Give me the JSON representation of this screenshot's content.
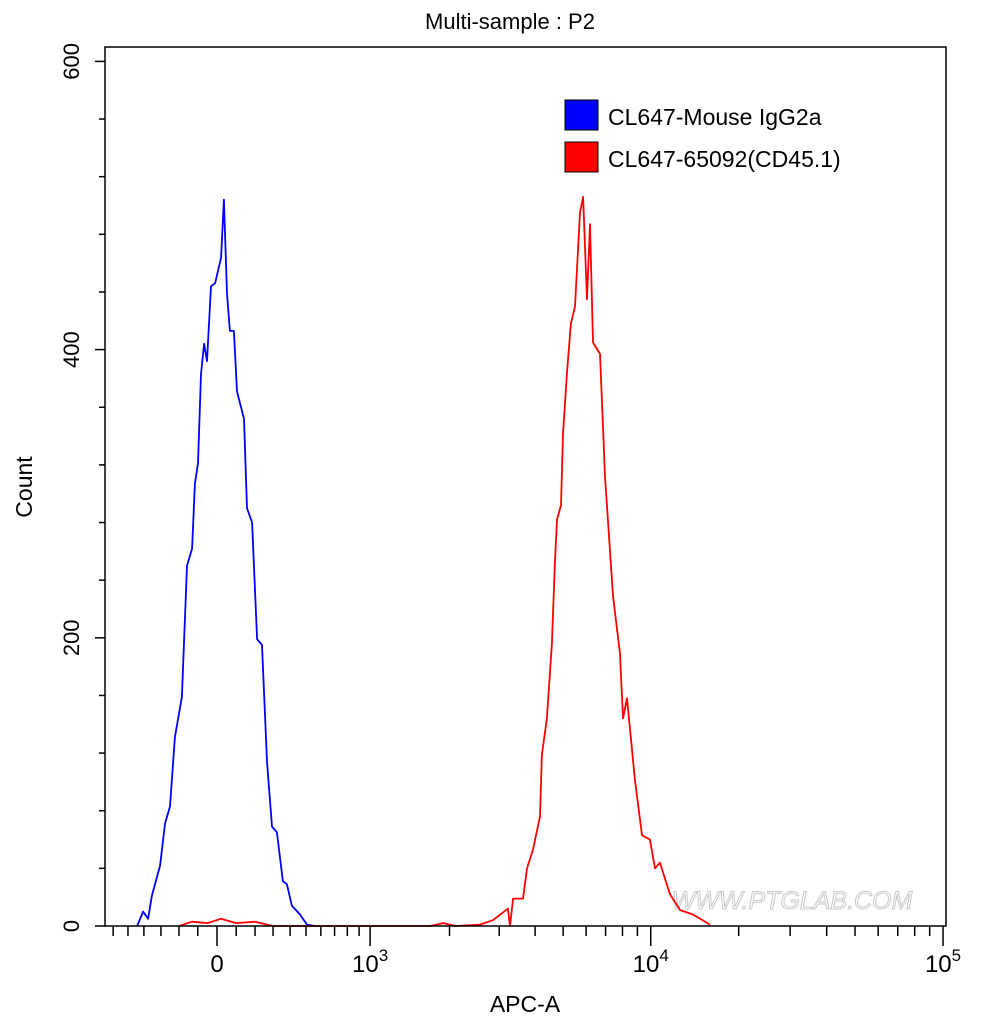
{
  "chart_data": {
    "type": "line",
    "title": "Multi-sample : P2",
    "xlabel": "APC-A",
    "ylabel": "Count",
    "x_scale": "biexponential",
    "xlim": [
      -650,
      100000
    ],
    "ylim": [
      0,
      610
    ],
    "x_major_ticks": [
      {
        "value": 0,
        "label": "0",
        "sup": ""
      },
      {
        "value": 1000,
        "label": "10",
        "sup": "3"
      },
      {
        "value": 10000,
        "label": "10",
        "sup": "4"
      },
      {
        "value": 100000,
        "label": "10",
        "sup": "5"
      }
    ],
    "y_ticks": [
      {
        "value": 0,
        "label": "0"
      },
      {
        "value": 200,
        "label": "200"
      },
      {
        "value": 400,
        "label": "400"
      },
      {
        "value": 600,
        "label": "600"
      }
    ],
    "y_minor_step": 40,
    "grid": false,
    "legend_position": "top-right",
    "series": [
      {
        "name": "CL647-Mouse IgG2a",
        "color": "#0000ff",
        "x": [
          -442,
          -405,
          -375,
          -352,
          -305,
          -277,
          -249,
          -222,
          -184,
          -157,
          -130,
          -115,
          -99,
          -83,
          -67,
          -52,
          -31,
          -10,
          21,
          36,
          52,
          67,
          88,
          104,
          141,
          157,
          184,
          211,
          238,
          266,
          294,
          322,
          357,
          381,
          411,
          461,
          506,
          559
        ],
        "y": [
          0,
          10,
          5,
          21,
          42,
          71,
          83,
          131,
          159,
          250,
          262,
          307,
          321,
          383,
          404,
          392,
          444,
          446,
          464,
          504,
          439,
          413,
          413,
          371,
          352,
          290,
          280,
          199,
          195,
          114,
          69,
          65,
          31,
          29,
          14,
          8,
          1,
          0
        ]
      },
      {
        "name": "CL647-65092(CD45.1)",
        "color": "#ff0000",
        "x": [
          -200,
          -130,
          -50,
          20,
          100,
          200,
          300,
          1700,
          1900,
          2100,
          2567,
          2851,
          3217,
          3271,
          3355,
          3632,
          3751,
          3935,
          4159,
          4224,
          4395,
          4573,
          4685,
          4764,
          4915,
          4994,
          5159,
          5317,
          5494,
          5718,
          5856,
          6040,
          6185,
          6337,
          6698,
          6968,
          7422,
          7843,
          8034,
          8291,
          8830,
          9330,
          9936,
          10344,
          10752,
          11640,
          12601,
          13950,
          15950
        ],
        "y": [
          0,
          3,
          2,
          5,
          2,
          3,
          0,
          0,
          2,
          0,
          1,
          4,
          12,
          0,
          19,
          19,
          40,
          53,
          76,
          119,
          144,
          196,
          252,
          282,
          292,
          342,
          385,
          418,
          430,
          495,
          506,
          435,
          487,
          405,
          397,
          312,
          229,
          189,
          144,
          158,
          101,
          63,
          60,
          40,
          44,
          22,
          11,
          8,
          1
        ]
      }
    ],
    "watermark": "WWW.PTGLAB.COM"
  }
}
